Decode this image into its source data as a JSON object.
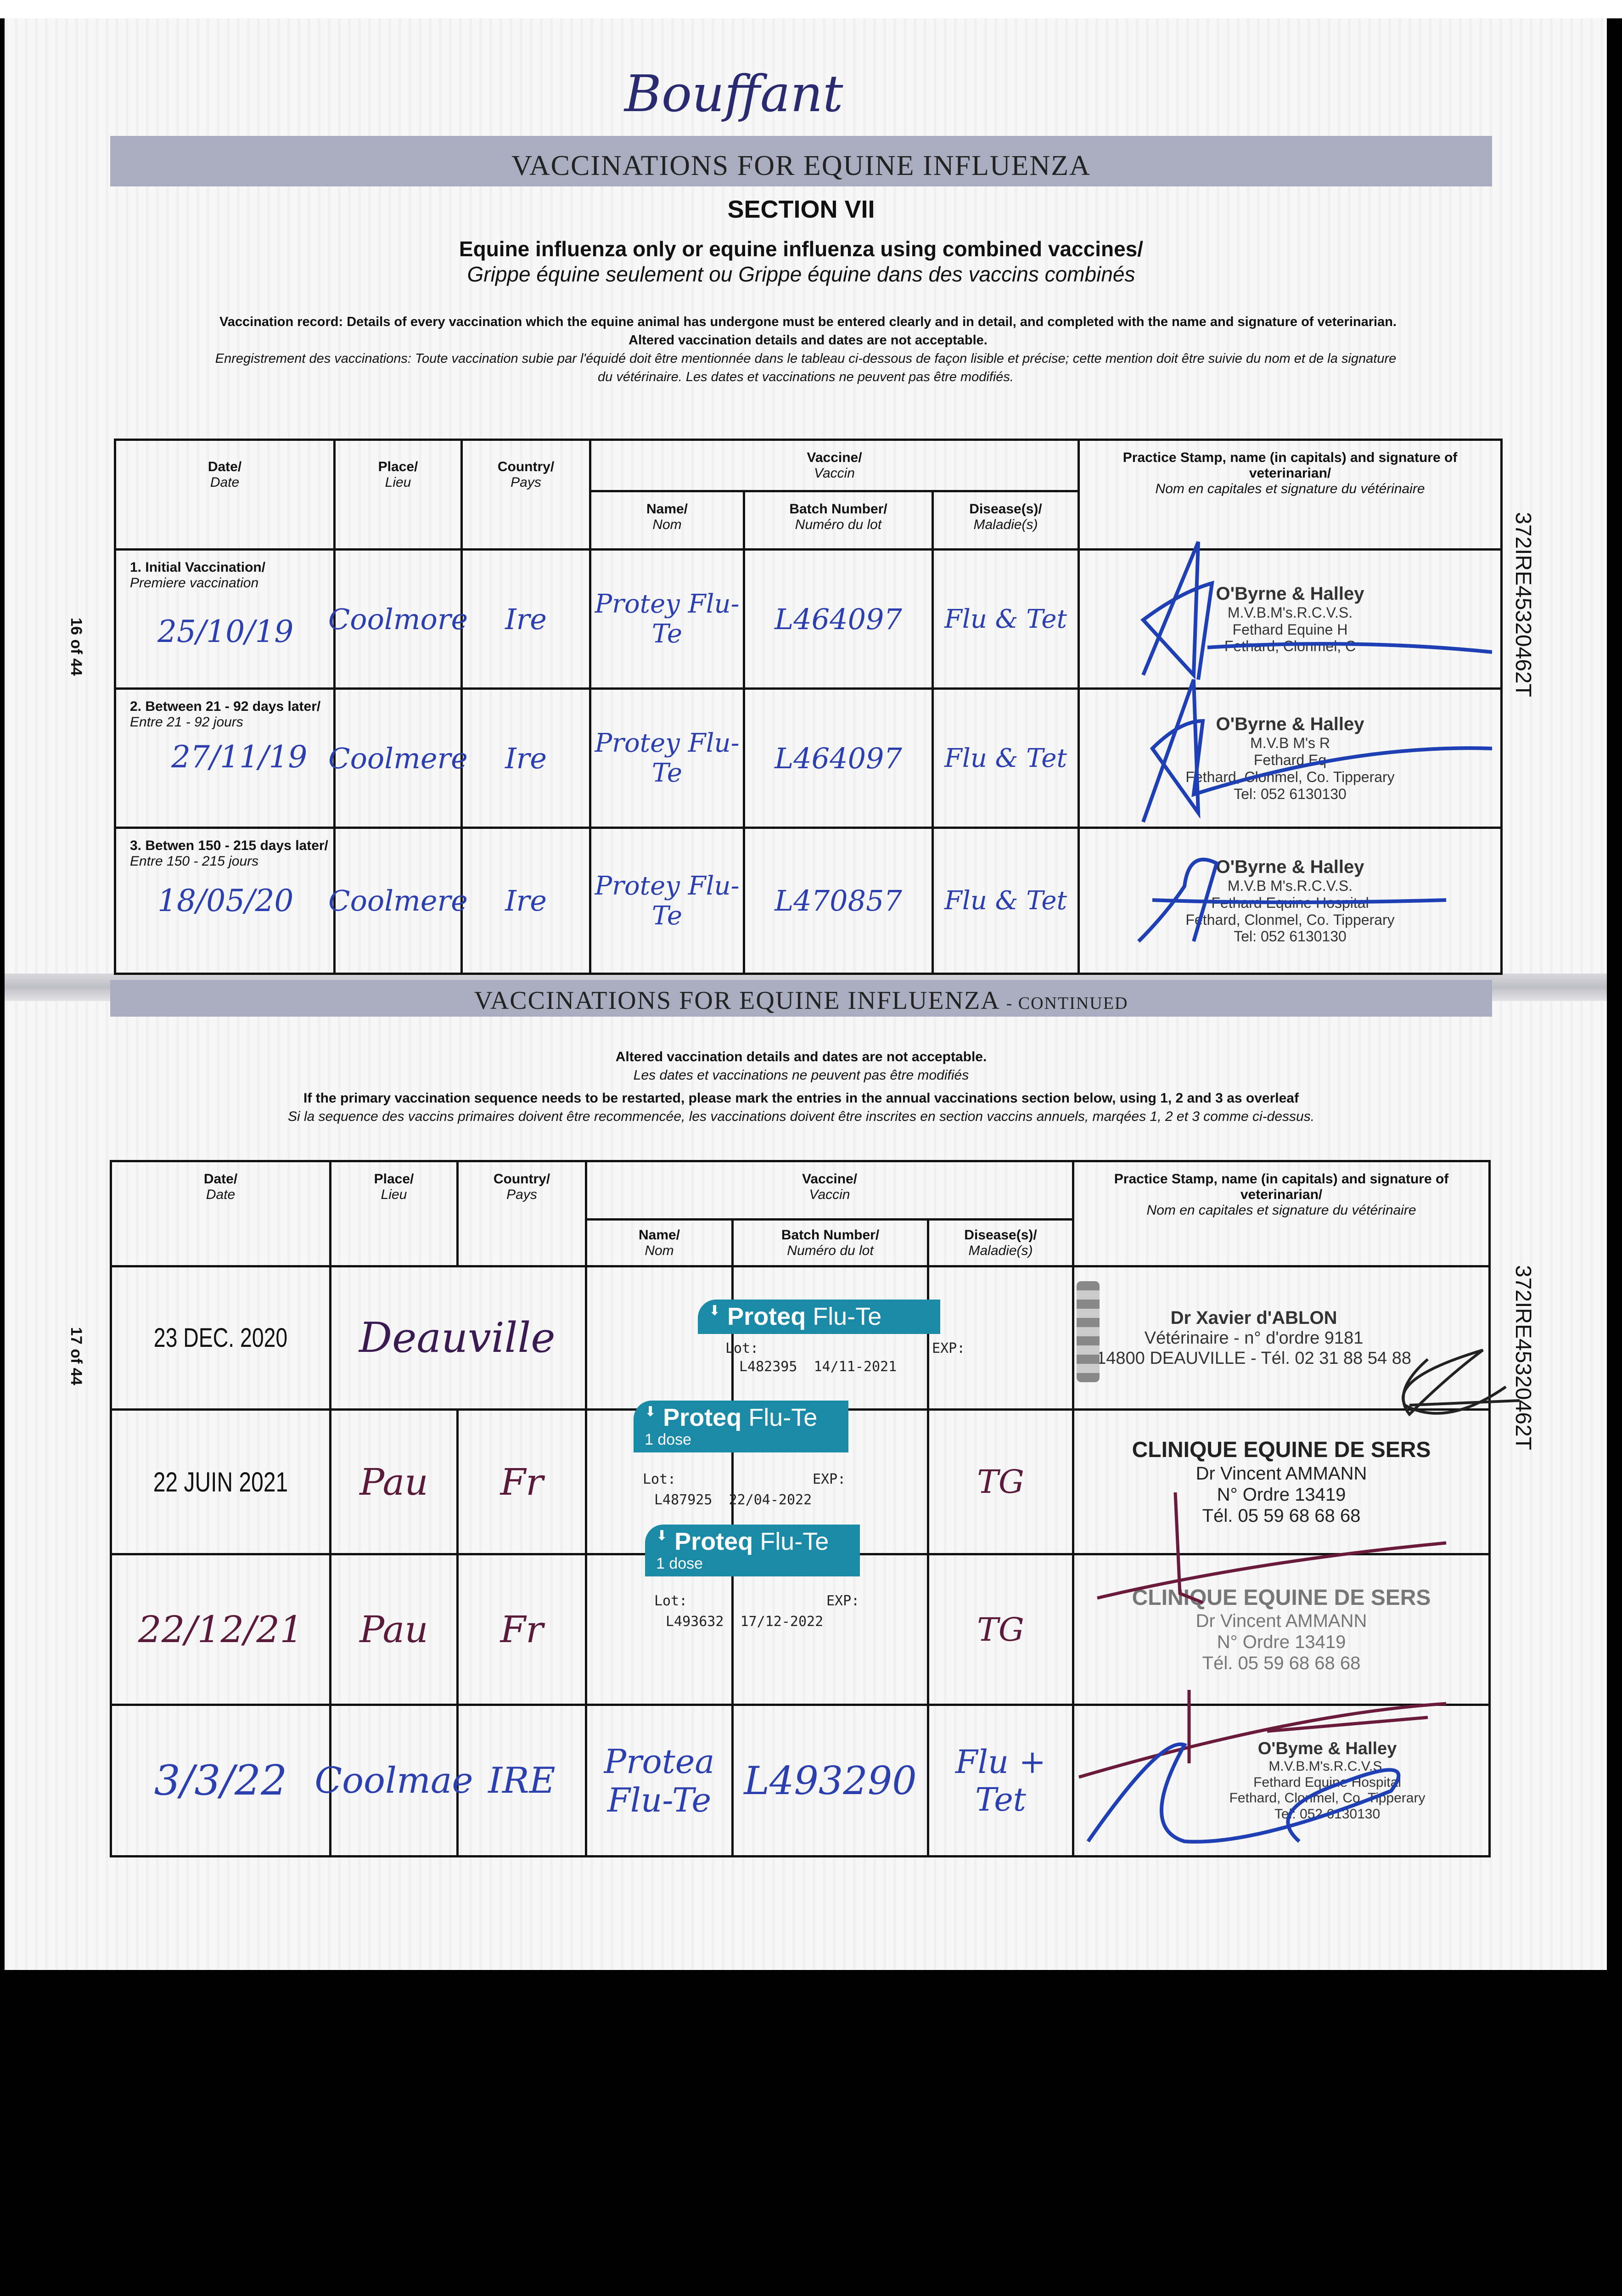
{
  "header": {
    "horse_name": "Bouffant",
    "banner_title": "VACCINATIONS FOR EQUINE INFLUENZA",
    "section": "SECTION VII",
    "subtitle_en": "Equine influenza only or equine influenza using combined vaccines/",
    "subtitle_fr": "Grippe équine seulement ou Grippe équine dans des vaccins combinés",
    "record_en": "Vaccination record: Details of every vaccination which the equine animal has undergone must be entered clearly and in detail, and completed with the name and signature of veterinarian.",
    "record_en2": "Altered vaccination details and dates are not acceptable.",
    "record_fr": "Enregistrement des vaccinations: Toute vaccination subie par l'équidé doit être mentionnée dans le tableau ci-dessous de façon lisible et précise; cette mention doit être suivie du nom et de la signature",
    "record_fr2": "du vétérinaire. Les dates et vaccinations ne peuvent pas être modifiés."
  },
  "columns": {
    "date": "Date/",
    "date_fr": "Date",
    "place": "Place/",
    "place_fr": "Lieu",
    "country": "Country/",
    "country_fr": "Pays",
    "vaccine": "Vaccine/",
    "vaccine_fr": "Vaccin",
    "name": "Name/",
    "name_fr": "Nom",
    "batch": "Batch Number/",
    "batch_fr": "Numéro du lot",
    "disease": "Disease(s)/",
    "disease_fr": "Maladie(s)",
    "stamp": "Practice Stamp, name (in capitals) and signature of veterinarian/",
    "stamp_fr": "Nom en capitales et signature du vétérinaire"
  },
  "page_numbers": {
    "top": "16 of 44",
    "bottom": "17 of 44"
  },
  "passport_id": "372IRE45320462T",
  "primary": [
    {
      "label": "1. Initial Vaccination/",
      "label_fr": "Premiere vaccination",
      "date": "25/10/19",
      "place": "Coolmore",
      "country": "Ire",
      "name": "Protey Flu-Te",
      "batch": "L464097",
      "disease": "Flu & Tet",
      "stamp": [
        "O'Byrne & Halley",
        "M.V.B.M's.R.C.V.S.",
        "Fethard Equine H",
        "Fethard, Clonmel, C"
      ]
    },
    {
      "label": "2. Between 21 - 92 days later/",
      "label_fr": "Entre 21 - 92 jours",
      "date": "27/11/19",
      "place": "Coolmere",
      "country": "Ire",
      "name": "Protey Flu-Te",
      "batch": "L464097",
      "disease": "Flu & Tet",
      "stamp": [
        "O'Byrne & Halley",
        "M.V.B M's R",
        "Fethard Eq",
        "Fethard, Clonmel, Co. Tipperary",
        "Tel: 052 6130130"
      ]
    },
    {
      "label": "3. Betwen 150 - 215 days later/",
      "label_fr": "Entre 150 - 215 jours",
      "date": "18/05/20",
      "place": "Coolmere",
      "country": "Ire",
      "name": "Protey Flu-Te",
      "batch": "L470857",
      "disease": "Flu & Tet",
      "stamp": [
        "O'Byrne & Halley",
        "M.V.B M's.R.C.V.S.",
        "Fethard Equine Hospital",
        "Fethard, Clonmel, Co. Tipperary",
        "Tel: 052 6130130"
      ]
    }
  ],
  "continued": {
    "banner_title": "VACCINATIONS FOR EQUINE INFLUENZA",
    "banner_suffix": "- CONTINUED",
    "note1": "Altered vaccination details and dates are not acceptable.",
    "note1_fr": "Les dates et vaccinations ne peuvent pas être modifiés",
    "note2": "If the primary vaccination sequence needs to be restarted, please mark the entries in the annual vaccinations section below, using 1, 2 and 3 as overleaf",
    "note2_fr": "Si la sequence des vaccins primaires doivent être recommencée, les vaccinations doivent être inscrites en section vaccins annuels, marqées 1, 2 et 3 comme ci-dessus."
  },
  "annual": [
    {
      "date": "23 DEC. 2020",
      "place": "Deauville",
      "country": "",
      "disease": "",
      "sticker": {
        "brand": "Proteq",
        "product": "Flu-Te",
        "dose": "",
        "lot_label": "Lot:",
        "exp_label": "EXP:",
        "lot": "L482395",
        "exp": "14/11-2021"
      },
      "stamp": [
        "Dr Xavier d'ABLON",
        "Vétérinaire - n° d'ordre 9181",
        "14800 DEAUVILLE - Tél. 02 31 88 54 88"
      ]
    },
    {
      "date": "22 JUIN 2021",
      "place": "Pau",
      "country": "Fr",
      "disease": "TG",
      "sticker": {
        "brand": "Proteq",
        "product": "Flu-Te",
        "dose": "1 dose",
        "lot_label": "Lot:",
        "exp_label": "EXP:",
        "lot": "L487925",
        "exp": "22/04-2022"
      },
      "stamp": [
        "CLINIQUE EQUINE DE SERS",
        "Dr Vincent AMMANN",
        "N° Ordre 13419",
        "Tél. 05 59 68 68 68"
      ]
    },
    {
      "date": "22/12/21",
      "place": "Pau",
      "country": "Fr",
      "disease": "TG",
      "sticker": {
        "brand": "Proteq",
        "product": "Flu-Te",
        "dose": "1 dose",
        "lot_label": "Lot:",
        "exp_label": "EXP:",
        "lot": "L493632",
        "exp": "17/12-2022"
      },
      "stamp": [
        "CLINIQUE EQUINE DE SERS",
        "Dr Vincent AMMANN",
        "N° Ordre 13419",
        "Tél. 05 59 68 68 68"
      ]
    },
    {
      "date": "3/3/22",
      "place": "Coolmae",
      "country": "IRE",
      "name": "Protea Flu-Te",
      "batch": "L493290",
      "disease": "Flu + Tet",
      "stamp": [
        "O'Byme & Halley",
        "M.V.B.M's.R.C.V.S.",
        "Fethard Equine Hospital",
        "Fethard, Clonmel, Co. Tipperary",
        "Tel: 052 6130130"
      ]
    }
  ],
  "colors": {
    "banner": "#a9adbf",
    "ink_blue": "#2b3fae",
    "ink_maroon": "#5a1a3a",
    "sticker_teal": "#1b8aa6"
  }
}
